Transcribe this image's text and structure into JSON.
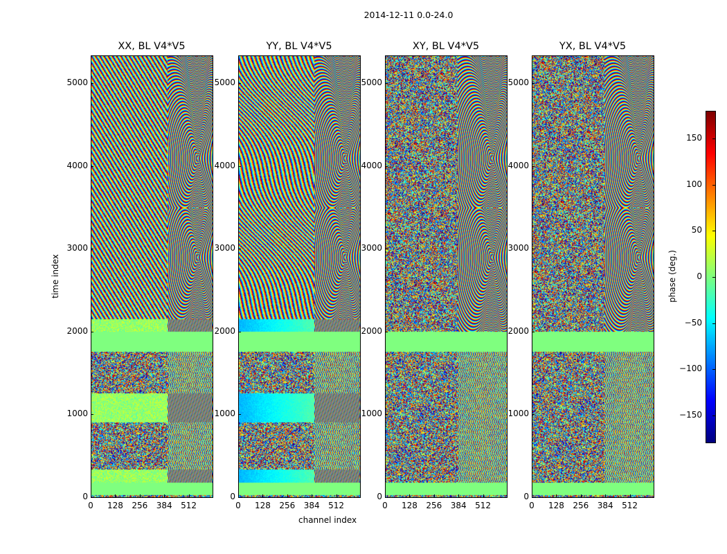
{
  "figure_title": "2014-12-11 0.0-24.0",
  "xlabel": "channel index",
  "ylabel": "time index",
  "colorbar_label": "phase (deg.)",
  "chart_data": {
    "type": "heatmap",
    "title": "2014-12-11 0.0-24.0",
    "panels": [
      {
        "title": "XX, BL V4*V5",
        "pol": "XX"
      },
      {
        "title": "YY, BL V4*V5",
        "pol": "YY"
      },
      {
        "title": "XY, BL V4*V5",
        "pol": "XY"
      },
      {
        "title": "YX, BL V4*V5",
        "pol": "YX"
      }
    ],
    "xlabel": "channel index",
    "ylabel": "time index",
    "xlim": [
      0,
      640
    ],
    "ylim": [
      0,
      5334
    ],
    "xticks": [
      "0",
      "128",
      "256",
      "384",
      "512"
    ],
    "xtick_values": [
      0,
      128,
      256,
      384,
      512
    ],
    "yticks": [
      "0",
      "1000",
      "2000",
      "3000",
      "4000",
      "5000"
    ],
    "ytick_values": [
      0,
      1000,
      2000,
      3000,
      4000,
      5000
    ],
    "colormap": "jet",
    "clim": [
      -180,
      180
    ],
    "colorbar_label": "phase (deg.)",
    "colorbar_ticks": [
      "150",
      "100",
      "50",
      "0",
      "−50",
      "−100",
      "−150"
    ],
    "colorbar_tick_values": [
      150,
      100,
      50,
      0,
      -50,
      -100,
      -150
    ]
  }
}
